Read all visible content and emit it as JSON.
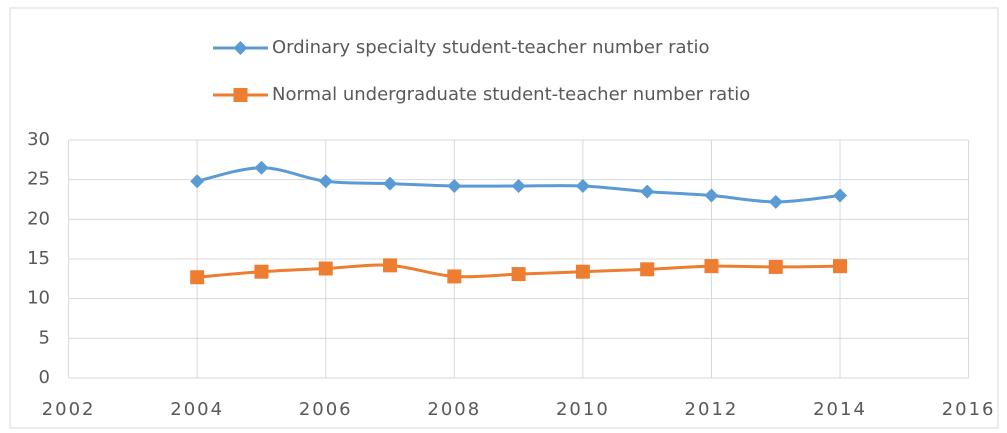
{
  "chart_data": {
    "type": "line",
    "x": [
      2004,
      2005,
      2006,
      2007,
      2008,
      2009,
      2010,
      2011,
      2012,
      2013,
      2014
    ],
    "series": [
      {
        "name": "Ordinary specialty student-teacher number ratio",
        "color": "#5b9bd5",
        "marker": "diamond",
        "values": [
          24.8,
          26.5,
          24.8,
          24.5,
          24.2,
          24.2,
          24.2,
          23.5,
          23.0,
          22.2,
          23.0
        ]
      },
      {
        "name": "Normal undergraduate student-teacher number ratio",
        "color": "#ed7d31",
        "marker": "square",
        "values": [
          12.7,
          13.4,
          13.8,
          14.2,
          12.8,
          13.1,
          13.4,
          13.7,
          14.1,
          14.0,
          14.1
        ]
      }
    ],
    "xlim": [
      2002,
      2016
    ],
    "xticks": [
      2002,
      2004,
      2006,
      2008,
      2010,
      2012,
      2014,
      2016
    ],
    "ylim": [
      0,
      30
    ],
    "yticks": [
      0,
      5,
      10,
      15,
      20,
      25,
      30
    ],
    "grid": true,
    "smooth": true,
    "legend": "top"
  }
}
